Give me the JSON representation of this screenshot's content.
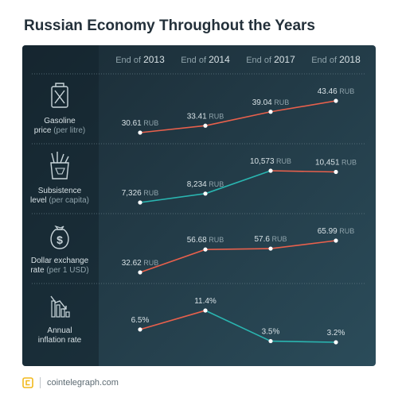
{
  "title": "Russian Economy Throughout the Years",
  "footer": {
    "site": "cointelegraph.com"
  },
  "colors": {
    "panel_dark": "#1a2b35",
    "rising": "#e8604c",
    "falling": "#2ab5b0",
    "text": "#d7e1e5",
    "muted": "#8fa3ab"
  },
  "chart_data": {
    "type": "line",
    "categories": [
      {
        "prefix": "End of ",
        "year": "2013"
      },
      {
        "prefix": "End of ",
        "year": "2014"
      },
      {
        "prefix": "End of ",
        "year": "2017"
      },
      {
        "prefix": "End of ",
        "year": "2018"
      }
    ],
    "series": [
      {
        "icon": "gasoline-canister-icon",
        "label_main": "Gasoline",
        "label_line2": "price",
        "label_note": "(per litre)",
        "values": [
          30.61,
          33.41,
          39.04,
          43.46
        ],
        "labels": [
          {
            "num": "30.61",
            "unit": "RUB"
          },
          {
            "num": "33.41",
            "unit": "RUB"
          },
          {
            "num": "39.04",
            "unit": "RUB"
          },
          {
            "num": "43.46",
            "unit": "RUB"
          }
        ],
        "segment_colors": [
          "rising",
          "rising",
          "rising"
        ]
      },
      {
        "icon": "grocery-bag-icon",
        "label_main": "Subsistence",
        "label_line2": "level",
        "label_note": "(per capita)",
        "values": [
          7326,
          8234,
          10573,
          10451
        ],
        "labels": [
          {
            "num": "7,326",
            "unit": "RUB"
          },
          {
            "num": "8,234",
            "unit": "RUB"
          },
          {
            "num": "10,573",
            "unit": "RUB"
          },
          {
            "num": "10,451",
            "unit": "RUB"
          }
        ],
        "segment_colors": [
          "falling",
          "falling",
          "rising"
        ]
      },
      {
        "icon": "dollar-money-bag-icon",
        "label_main": "Dollar exchange",
        "label_line2": "rate",
        "label_note": "(per 1 USD)",
        "values": [
          32.62,
          56.68,
          57.6,
          65.99
        ],
        "labels": [
          {
            "num": "32.62",
            "unit": "RUB"
          },
          {
            "num": "56.68",
            "unit": "RUB"
          },
          {
            "num": "57.6",
            "unit": "RUB"
          },
          {
            "num": "65.99",
            "unit": "RUB"
          }
        ],
        "segment_colors": [
          "rising",
          "rising",
          "rising"
        ]
      },
      {
        "icon": "inflation-decline-chart-icon",
        "label_main": "Annual",
        "label_line2": "inflation rate",
        "label_note": "",
        "values": [
          6.5,
          11.4,
          3.5,
          3.2
        ],
        "labels": [
          {
            "num": "6.5%",
            "unit": ""
          },
          {
            "num": "11.4%",
            "unit": ""
          },
          {
            "num": "3.5%",
            "unit": ""
          },
          {
            "num": "3.2%",
            "unit": ""
          }
        ],
        "segment_colors": [
          "rising",
          "falling",
          "falling"
        ]
      }
    ]
  }
}
